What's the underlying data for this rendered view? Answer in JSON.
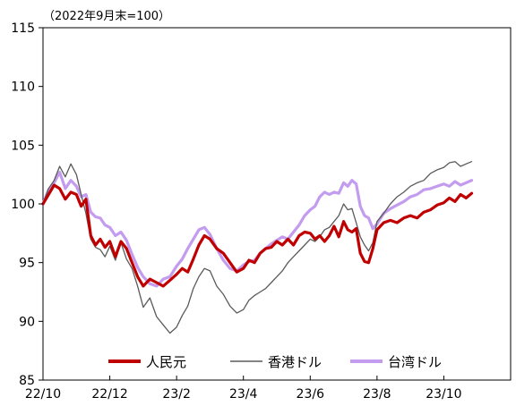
{
  "chart_data": {
    "type": "line",
    "note": "（2022年9月末=100）",
    "x_categories": [
      "22/10",
      "22/12",
      "23/2",
      "23/4",
      "23/6",
      "23/8",
      "23/10"
    ],
    "ylim": [
      85,
      115
    ],
    "yticks": [
      85,
      90,
      95,
      100,
      105,
      110,
      115
    ],
    "legend_position": "bottom-inside",
    "series": [
      {
        "name": "人民元",
        "color": "#c00000",
        "points": [
          [
            "22/10",
            100.0
          ],
          [
            "22/10",
            100.8
          ],
          [
            "22/10",
            101.6
          ],
          [
            "22/10",
            101.3
          ],
          [
            "22/10",
            100.4
          ],
          [
            "22/10",
            101.0
          ],
          [
            "22/11",
            100.8
          ],
          [
            "22/11",
            99.8
          ],
          [
            "22/11",
            100.4
          ],
          [
            "22/11",
            97.3
          ],
          [
            "22/11",
            96.5
          ],
          [
            "22/11",
            97.0
          ],
          [
            "22/11",
            96.3
          ],
          [
            "22/12",
            96.8
          ],
          [
            "22/12",
            95.5
          ],
          [
            "22/12",
            96.8
          ],
          [
            "22/12",
            96.2
          ],
          [
            "22/12",
            95.0
          ],
          [
            "22/12",
            93.8
          ],
          [
            "23/1",
            93.0
          ],
          [
            "23/1",
            93.6
          ],
          [
            "23/1",
            93.3
          ],
          [
            "23/1",
            93.0
          ],
          [
            "23/1",
            93.5
          ],
          [
            "23/2",
            94.0
          ],
          [
            "23/2",
            94.5
          ],
          [
            "23/2",
            94.2
          ],
          [
            "23/2",
            95.3
          ],
          [
            "23/2",
            96.5
          ],
          [
            "23/2",
            97.3
          ],
          [
            "23/3",
            97.0
          ],
          [
            "23/3",
            96.2
          ],
          [
            "23/3",
            95.8
          ],
          [
            "23/3",
            95.0
          ],
          [
            "23/3",
            94.2
          ],
          [
            "23/4",
            94.5
          ],
          [
            "23/4",
            95.2
          ],
          [
            "23/4",
            95.0
          ],
          [
            "23/4",
            95.8
          ],
          [
            "23/4",
            96.2
          ],
          [
            "23/4",
            96.3
          ],
          [
            "23/5",
            96.8
          ],
          [
            "23/5",
            96.5
          ],
          [
            "23/5",
            97.0
          ],
          [
            "23/5",
            96.5
          ],
          [
            "23/5",
            97.3
          ],
          [
            "23/5",
            97.6
          ],
          [
            "23/6",
            97.5
          ],
          [
            "23/6",
            97.0
          ],
          [
            "23/6",
            97.3
          ],
          [
            "23/6",
            96.8
          ],
          [
            "23/6",
            97.3
          ],
          [
            "23/6",
            98.1
          ],
          [
            "23/6",
            97.2
          ],
          [
            "23/7",
            98.5
          ],
          [
            "23/7",
            97.8
          ],
          [
            "23/7",
            97.6
          ],
          [
            "23/7",
            97.9
          ],
          [
            "23/7",
            95.8
          ],
          [
            "23/7",
            95.1
          ],
          [
            "23/7",
            95.0
          ],
          [
            "23/7",
            96.2
          ],
          [
            "23/8",
            97.8
          ],
          [
            "23/8",
            98.4
          ],
          [
            "23/8",
            98.6
          ],
          [
            "23/8",
            98.4
          ],
          [
            "23/8",
            98.8
          ],
          [
            "23/9",
            99.0
          ],
          [
            "23/9",
            98.8
          ],
          [
            "23/9",
            99.3
          ],
          [
            "23/9",
            99.5
          ],
          [
            "23/9",
            99.9
          ],
          [
            "23/10",
            100.1
          ],
          [
            "23/10",
            100.5
          ],
          [
            "23/10",
            100.2
          ],
          [
            "23/10",
            100.8
          ],
          [
            "23/10",
            100.5
          ],
          [
            "23/10",
            100.9
          ]
        ]
      },
      {
        "name": "香港ドル",
        "color": "#5a5a5a",
        "points": [
          [
            "22/10",
            100.0
          ],
          [
            "22/10",
            101.3
          ],
          [
            "22/10",
            102.0
          ],
          [
            "22/10",
            103.2
          ],
          [
            "22/10",
            102.3
          ],
          [
            "22/10",
            103.4
          ],
          [
            "22/11",
            102.5
          ],
          [
            "22/11",
            100.8
          ],
          [
            "22/11",
            99.2
          ],
          [
            "22/11",
            97.0
          ],
          [
            "22/11",
            96.3
          ],
          [
            "22/11",
            96.1
          ],
          [
            "22/11",
            95.5
          ],
          [
            "22/12",
            96.4
          ],
          [
            "22/12",
            95.2
          ],
          [
            "22/12",
            96.7
          ],
          [
            "22/12",
            95.3
          ],
          [
            "22/12",
            94.5
          ],
          [
            "22/12",
            93.0
          ],
          [
            "23/1",
            91.2
          ],
          [
            "23/1",
            92.0
          ],
          [
            "23/1",
            90.4
          ],
          [
            "23/1",
            89.7
          ],
          [
            "23/1",
            89.0
          ],
          [
            "23/2",
            89.5
          ],
          [
            "23/2",
            90.5
          ],
          [
            "23/2",
            91.3
          ],
          [
            "23/2",
            92.8
          ],
          [
            "23/2",
            93.8
          ],
          [
            "23/2",
            94.5
          ],
          [
            "23/3",
            94.3
          ],
          [
            "23/3",
            93.0
          ],
          [
            "23/3",
            92.3
          ],
          [
            "23/3",
            91.3
          ],
          [
            "23/3",
            90.7
          ],
          [
            "23/4",
            91.0
          ],
          [
            "23/4",
            91.8
          ],
          [
            "23/4",
            92.2
          ],
          [
            "23/4",
            92.5
          ],
          [
            "23/4",
            92.8
          ],
          [
            "23/4",
            93.3
          ],
          [
            "23/5",
            93.8
          ],
          [
            "23/5",
            94.3
          ],
          [
            "23/5",
            95.0
          ],
          [
            "23/5",
            95.5
          ],
          [
            "23/5",
            96.0
          ],
          [
            "23/5",
            96.5
          ],
          [
            "23/6",
            97.0
          ],
          [
            "23/6",
            96.8
          ],
          [
            "23/6",
            97.2
          ],
          [
            "23/6",
            97.8
          ],
          [
            "23/6",
            98.0
          ],
          [
            "23/6",
            98.5
          ],
          [
            "23/6",
            99.0
          ],
          [
            "23/7",
            100.0
          ],
          [
            "23/7",
            99.5
          ],
          [
            "23/7",
            99.6
          ],
          [
            "23/7",
            98.4
          ],
          [
            "23/7",
            97.2
          ],
          [
            "23/7",
            96.5
          ],
          [
            "23/7",
            96.0
          ],
          [
            "23/7",
            96.7
          ],
          [
            "23/8",
            98.5
          ],
          [
            "23/8",
            99.2
          ],
          [
            "23/8",
            100.0
          ],
          [
            "23/8",
            100.6
          ],
          [
            "23/8",
            101.0
          ],
          [
            "23/9",
            101.5
          ],
          [
            "23/9",
            101.8
          ],
          [
            "23/9",
            102.0
          ],
          [
            "23/9",
            102.6
          ],
          [
            "23/9",
            102.9
          ],
          [
            "23/10",
            103.1
          ],
          [
            "23/10",
            103.5
          ],
          [
            "23/10",
            103.6
          ],
          [
            "23/10",
            103.2
          ],
          [
            "23/10",
            103.4
          ],
          [
            "23/10",
            103.6
          ]
        ]
      },
      {
        "name": "台湾ドル",
        "color": "#c39bef",
        "points": [
          [
            "22/10",
            100.0
          ],
          [
            "22/10",
            101.2
          ],
          [
            "22/10",
            101.8
          ],
          [
            "22/10",
            102.7
          ],
          [
            "22/10",
            101.3
          ],
          [
            "22/10",
            102.0
          ],
          [
            "22/11",
            101.5
          ],
          [
            "22/11",
            100.6
          ],
          [
            "22/11",
            100.8
          ],
          [
            "22/11",
            99.3
          ],
          [
            "22/11",
            98.9
          ],
          [
            "22/11",
            98.8
          ],
          [
            "22/11",
            98.2
          ],
          [
            "22/12",
            98.0
          ],
          [
            "22/12",
            97.3
          ],
          [
            "22/12",
            97.6
          ],
          [
            "22/12",
            96.9
          ],
          [
            "22/12",
            95.7
          ],
          [
            "22/12",
            94.6
          ],
          [
            "23/1",
            93.8
          ],
          [
            "23/1",
            93.2
          ],
          [
            "23/1",
            93.0
          ],
          [
            "23/1",
            93.6
          ],
          [
            "23/1",
            93.8
          ],
          [
            "23/2",
            94.7
          ],
          [
            "23/2",
            95.3
          ],
          [
            "23/2",
            96.2
          ],
          [
            "23/2",
            97.0
          ],
          [
            "23/2",
            97.8
          ],
          [
            "23/2",
            98.0
          ],
          [
            "23/3",
            97.4
          ],
          [
            "23/3",
            96.2
          ],
          [
            "23/3",
            95.2
          ],
          [
            "23/3",
            94.5
          ],
          [
            "23/3",
            94.3
          ],
          [
            "23/4",
            94.8
          ],
          [
            "23/4",
            95.1
          ],
          [
            "23/4",
            95.2
          ],
          [
            "23/4",
            95.8
          ],
          [
            "23/4",
            96.2
          ],
          [
            "23/4",
            96.6
          ],
          [
            "23/5",
            96.9
          ],
          [
            "23/5",
            97.2
          ],
          [
            "23/5",
            97.0
          ],
          [
            "23/5",
            97.6
          ],
          [
            "23/5",
            98.2
          ],
          [
            "23/5",
            99.0
          ],
          [
            "23/6",
            99.5
          ],
          [
            "23/6",
            99.8
          ],
          [
            "23/6",
            100.6
          ],
          [
            "23/6",
            101.0
          ],
          [
            "23/6",
            100.8
          ],
          [
            "23/6",
            101.0
          ],
          [
            "23/6",
            100.9
          ],
          [
            "23/7",
            101.8
          ],
          [
            "23/7",
            101.5
          ],
          [
            "23/7",
            102.0
          ],
          [
            "23/7",
            101.7
          ],
          [
            "23/7",
            99.8
          ],
          [
            "23/7",
            99.0
          ],
          [
            "23/7",
            98.8
          ],
          [
            "23/7",
            97.9
          ],
          [
            "23/8",
            98.3
          ],
          [
            "23/8",
            99.2
          ],
          [
            "23/8",
            99.6
          ],
          [
            "23/8",
            99.9
          ],
          [
            "23/8",
            100.2
          ],
          [
            "23/9",
            100.6
          ],
          [
            "23/9",
            100.8
          ],
          [
            "23/9",
            101.2
          ],
          [
            "23/9",
            101.3
          ],
          [
            "23/9",
            101.5
          ],
          [
            "23/10",
            101.7
          ],
          [
            "23/10",
            101.5
          ],
          [
            "23/10",
            101.9
          ],
          [
            "23/10",
            101.6
          ],
          [
            "23/10",
            101.8
          ],
          [
            "23/10",
            102.0
          ]
        ]
      }
    ]
  }
}
